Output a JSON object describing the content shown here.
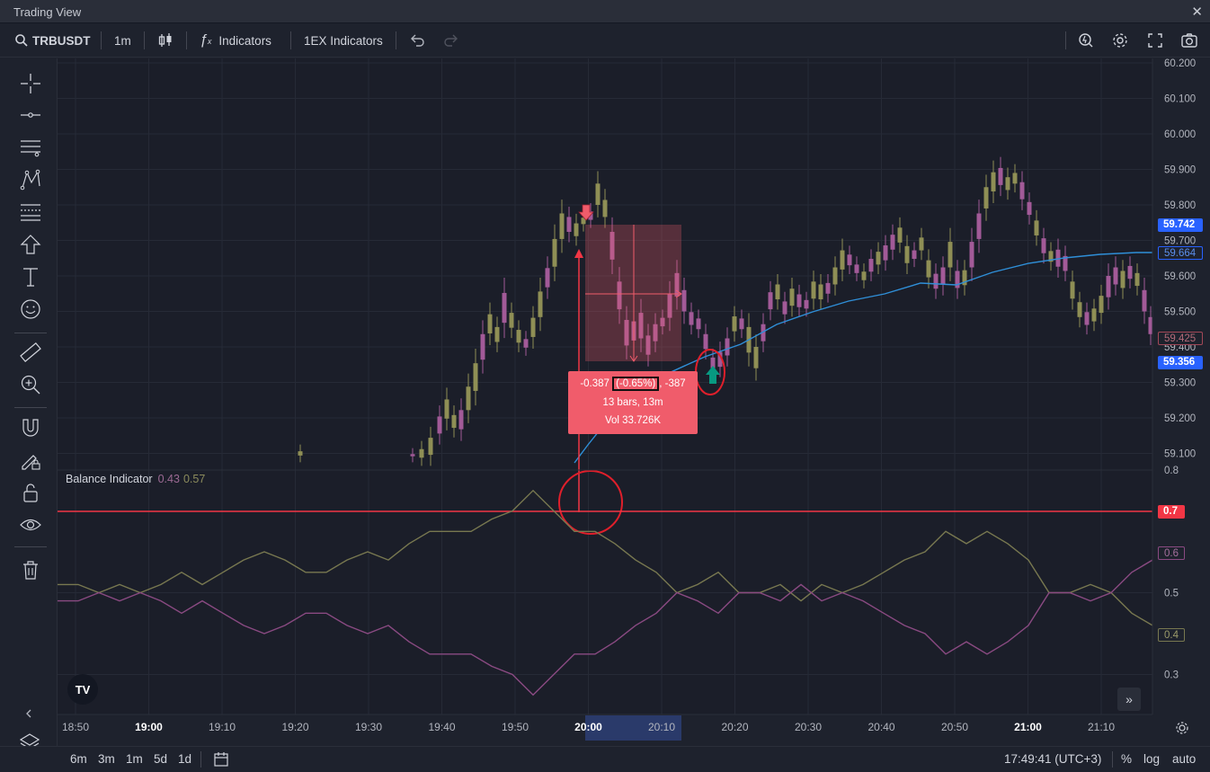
{
  "window": {
    "title": "Trading View",
    "close_glyph": "✕"
  },
  "toolbar": {
    "symbol": "TRBUSDT",
    "interval": "1m",
    "indicators_label": "Indicators",
    "custom_indicators_label": "1EX Indicators"
  },
  "left_tools": [
    "crosshair-icon",
    "horizontal-line-icon",
    "parallel-lines-icon",
    "pattern-icon",
    "fib-icon",
    "arrow-up-icon",
    "text-icon",
    "emoji-icon",
    "ruler-icon",
    "zoom-in-icon",
    "magnet-icon",
    "lock-drawing-icon",
    "unlock-icon",
    "eye-icon",
    "trash-icon"
  ],
  "indicator": {
    "name": "Balance Indicator",
    "value1": "0.43",
    "value2": "0.57"
  },
  "measure": {
    "change": "-0.387",
    "percent": "(-0.65%)",
    "ticks": ", -387",
    "bars": "13 bars, 13m",
    "volume": "Vol 33.726K"
  },
  "price_axis": {
    "ticks": [
      "60.200",
      "60.100",
      "60.000",
      "59.900",
      "59.800",
      "59.700",
      "59.600",
      "59.500",
      "59.400",
      "59.300",
      "59.200",
      "59.100"
    ],
    "tags": [
      {
        "label": "59.742",
        "style": "blue-fill"
      },
      {
        "label": "59.664",
        "style": "blue-outline"
      },
      {
        "label": "59.425",
        "style": "red-outline"
      },
      {
        "label": "59.356",
        "style": "blue-fill"
      }
    ]
  },
  "indicator_axis": {
    "ticks": [
      "0.8",
      "0.5",
      "0.3"
    ],
    "tags": [
      {
        "label": "0.7",
        "style": "red-fill"
      },
      {
        "label": "0.6",
        "style": "pink-outline"
      },
      {
        "label": "0.4",
        "style": "olive-outline"
      }
    ]
  },
  "time_axis": {
    "labels": [
      "18:50",
      "19:00",
      "19:10",
      "19:20",
      "19:30",
      "19:40",
      "19:50",
      "20:00",
      "20:10",
      "20:20",
      "20:30",
      "20:40",
      "20:50",
      "21:00",
      "21:10"
    ],
    "bold": [
      "19:00",
      "20:00",
      "21:00"
    ]
  },
  "bottom": {
    "ranges": [
      "6m",
      "3m",
      "1m",
      "5d",
      "1d"
    ],
    "clock": "17:49:41 (UTC+3)",
    "percent_label": "%",
    "log_label": "log",
    "auto_label": "auto"
  },
  "logo_text": "TV",
  "colors": {
    "bull": "#8f8f55",
    "bear": "#a25a98",
    "ma": "#2f8fd8",
    "alert": "#f23645",
    "bg": "#1e222d"
  }
}
